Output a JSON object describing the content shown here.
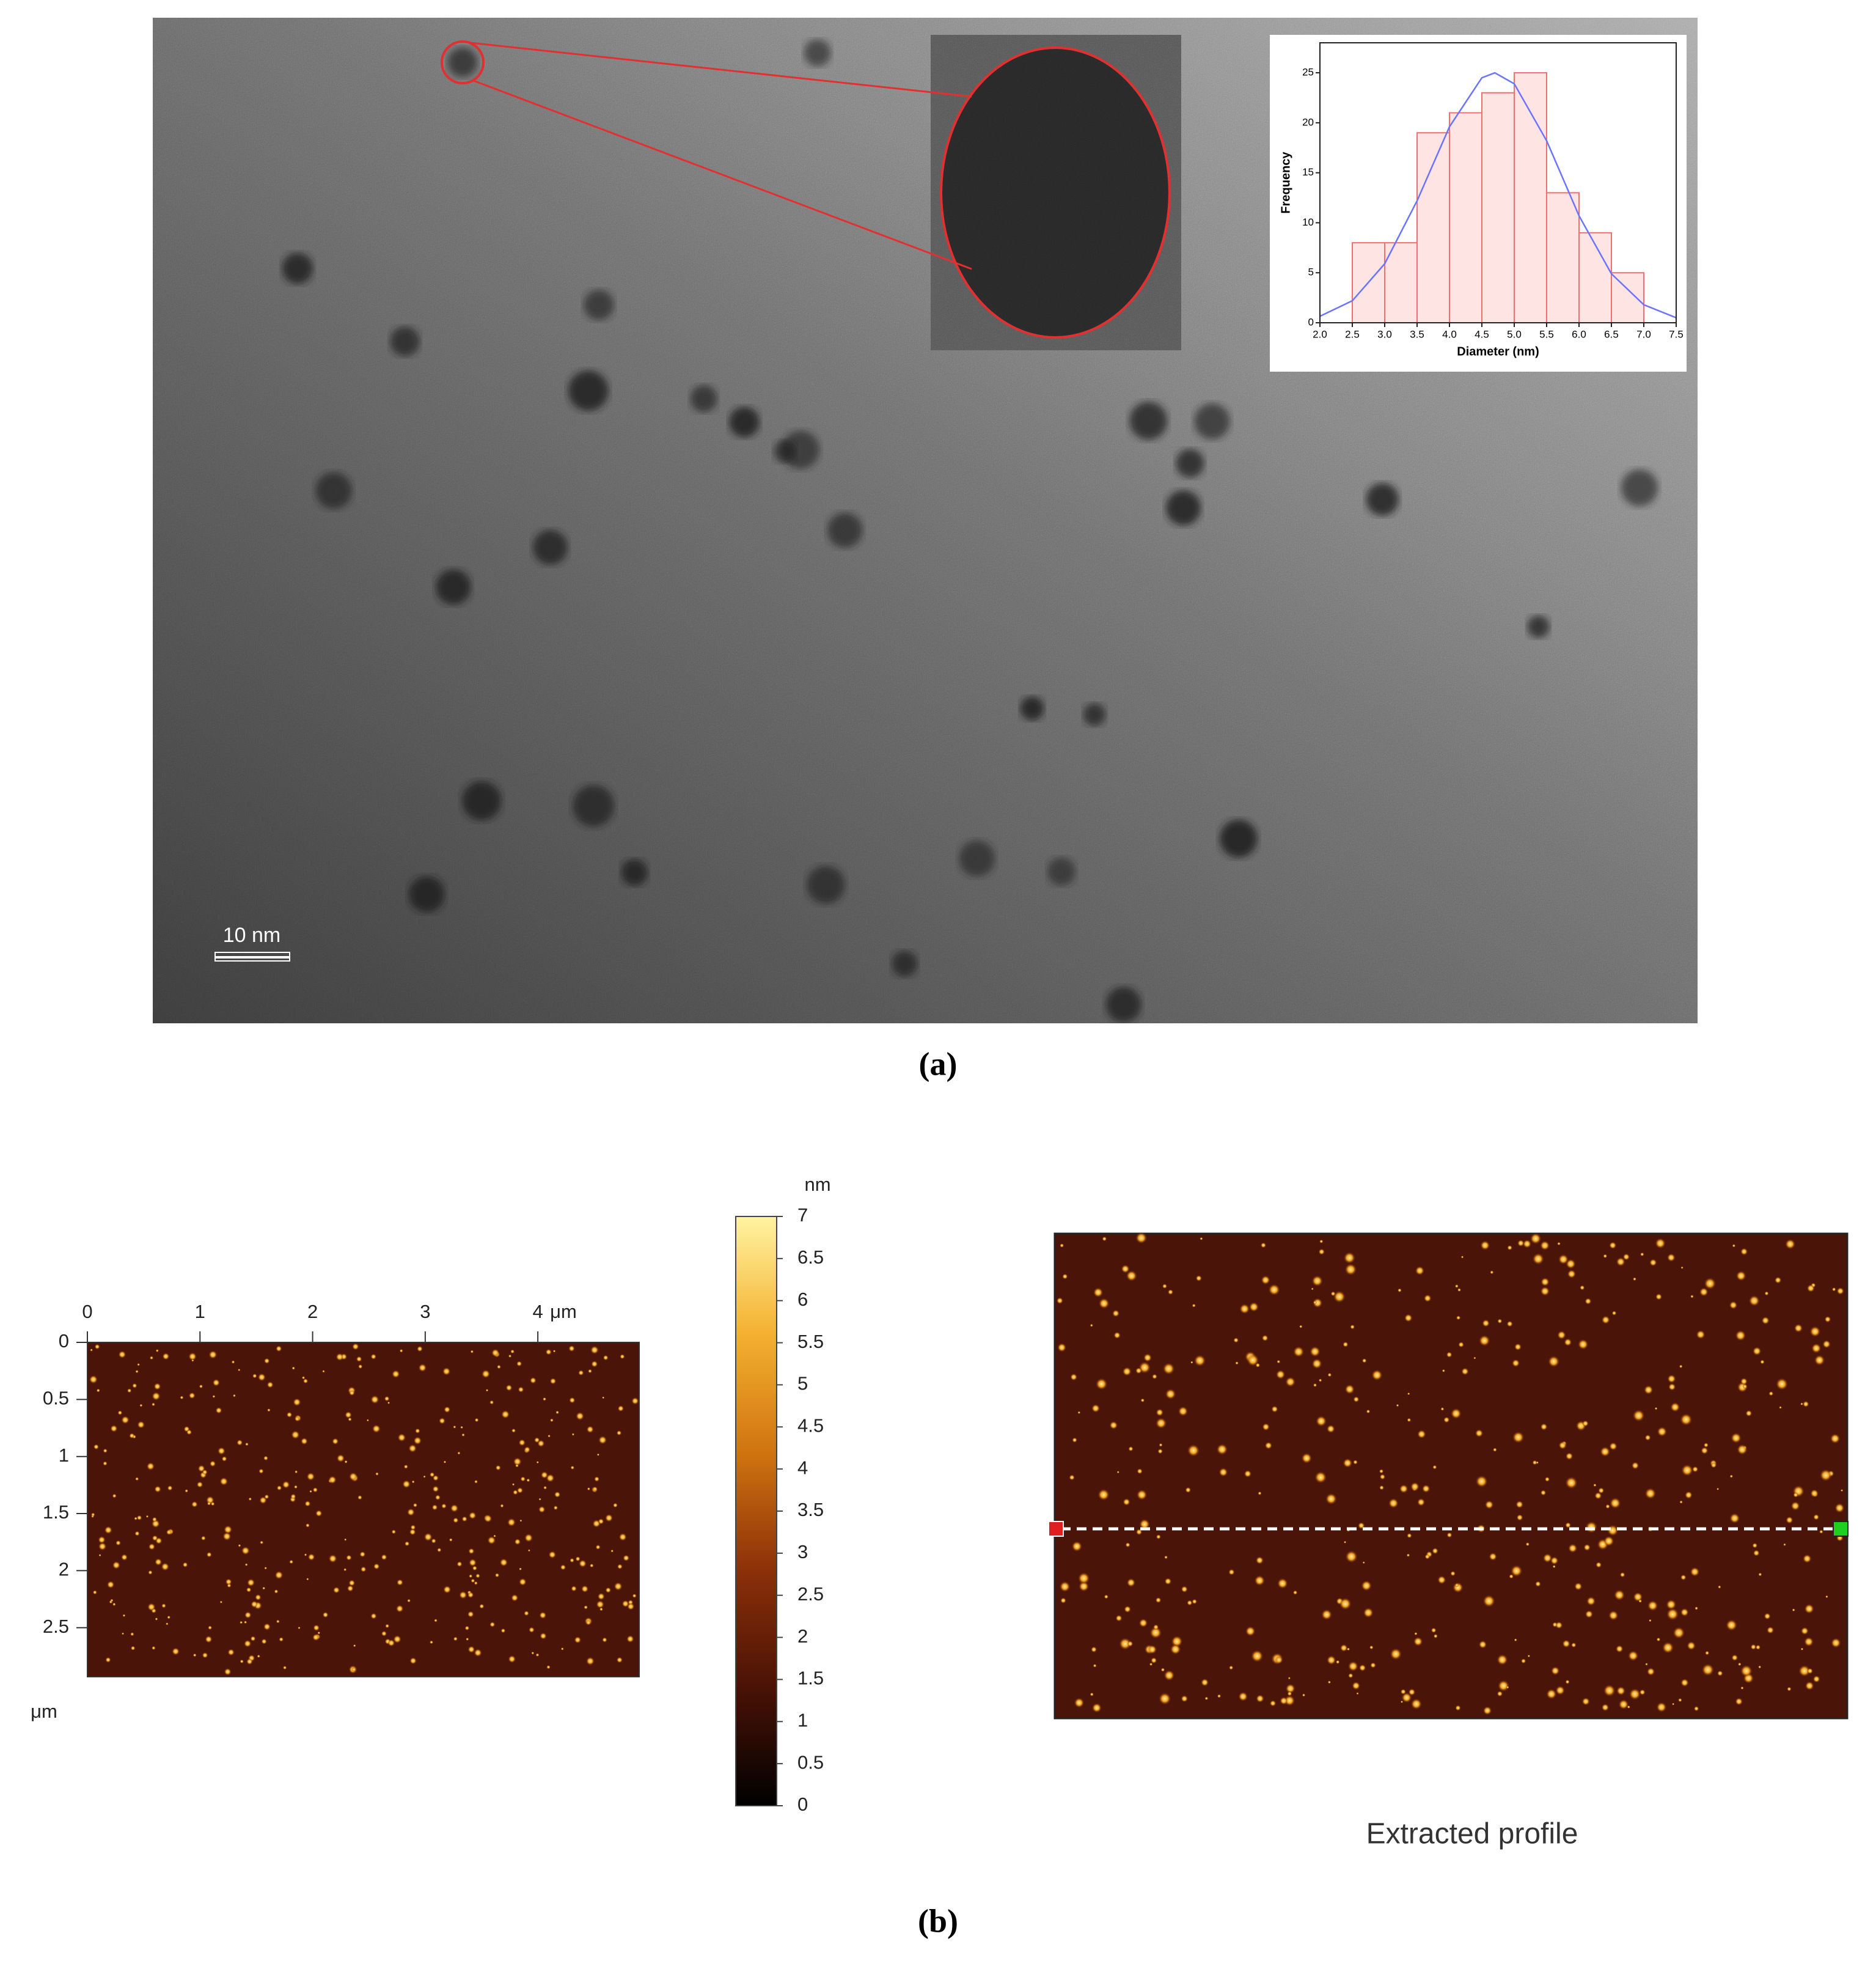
{
  "panel_a": {
    "label": "(a)",
    "scale_bar": "10 nm"
  },
  "panel_b": {
    "label": "(b)",
    "profile_caption": "Extracted profile"
  },
  "chart_data": [
    {
      "type": "histogram",
      "x_label": "Diameter (nm)",
      "y_label": "Frequency",
      "bins": [
        2.5,
        3,
        3.5,
        4,
        4.5,
        5,
        5.5,
        6,
        6.5,
        7
      ],
      "counts": [
        8,
        8,
        19,
        21,
        23,
        25,
        13,
        9,
        5
      ],
      "bar_color": "#ffe4e4",
      "edge_color": "#f07070",
      "fit": {
        "color": "#6a74ff",
        "x": [
          2,
          2.5,
          3,
          3.5,
          4,
          4.5,
          4.7,
          5,
          5.5,
          6,
          6.5,
          7,
          7.5
        ],
        "values": [
          0.65,
          2.2,
          5.9,
          12.2,
          19.6,
          24.5,
          25,
          23.9,
          18.2,
          10.7,
          4.9,
          1.8,
          0.5
        ]
      },
      "xlim": [
        2,
        7.5
      ],
      "xticks": [
        {
          "value": 2,
          "label": "2.0"
        },
        2.5,
        {
          "value": 3,
          "label": "3.0"
        },
        3.5,
        {
          "value": 4,
          "label": "4.0"
        },
        4.5,
        {
          "value": 5,
          "label": "5.0"
        },
        5.5,
        {
          "value": 6,
          "label": "6.0"
        },
        6.5,
        {
          "value": 7,
          "label": "7.0"
        },
        7.5
      ],
      "ylim": [
        0,
        28
      ],
      "yticks": [
        0,
        5,
        10,
        15,
        20,
        25
      ]
    },
    {
      "type": "colorbar",
      "title": "nm",
      "ylim": [
        0,
        7
      ],
      "yticks": [
        0,
        0.5,
        1,
        1.5,
        2,
        2.5,
        3,
        3.5,
        4,
        4.5,
        5,
        5.5,
        6,
        6.5,
        7
      ],
      "colors": [
        "#000000",
        "#4a1206",
        "#8c3008",
        "#d07410",
        "#f4b030",
        "#fff4a0"
      ]
    },
    {
      "type": "image",
      "x_label": "μm",
      "y_label": "μm",
      "xlim": [
        0,
        4.9
      ],
      "xticks": [
        0,
        1,
        2,
        3,
        4
      ],
      "ylim": [
        0,
        2.93
      ],
      "yticks": [
        0,
        0.5,
        1,
        1.5,
        2,
        2.5
      ]
    }
  ]
}
